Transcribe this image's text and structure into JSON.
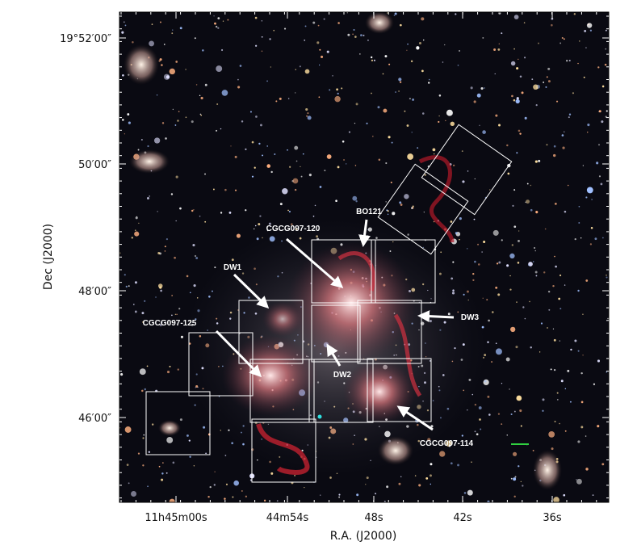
{
  "axes": {
    "x_label": "R.A. (J2000)",
    "y_label": "Dec (J2000)",
    "x_ticks": [
      "11h45m00s",
      "44m54s",
      "48s",
      "42s",
      "36s"
    ],
    "y_ticks": [
      "19°52′00″",
      "50′00″",
      "48′00″",
      "46′00″"
    ]
  },
  "annotations": [
    {
      "label": "BO121"
    },
    {
      "label": "CGCG097-120"
    },
    {
      "label": "DW1"
    },
    {
      "label": "DW3"
    },
    {
      "label": "CGCG097-125"
    },
    {
      "label": "DW2"
    },
    {
      "label": "CGCG097-114"
    }
  ]
}
